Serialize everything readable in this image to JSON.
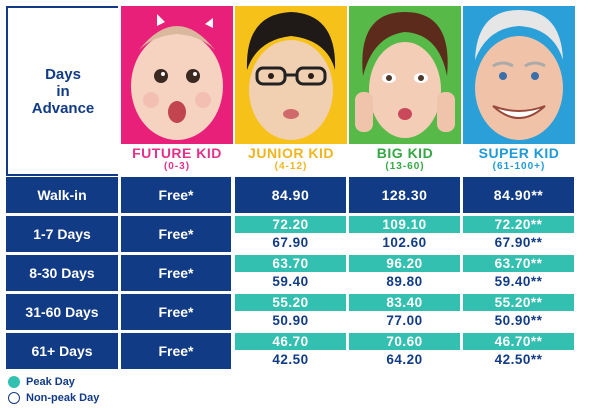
{
  "header": {
    "corner_line1": "Days",
    "corner_line2": "in",
    "corner_line3": "Advance"
  },
  "categories": [
    {
      "name": "FUTURE KID",
      "age": "(0-3)",
      "color": "#e6318a",
      "bg": "#e9207a"
    },
    {
      "name": "JUNIOR KID",
      "age": "(4-12)",
      "color": "#f0b51e",
      "bg": "#f6c21a"
    },
    {
      "name": "BIG KID",
      "age": "(13-60)",
      "color": "#36a843",
      "bg": "#56b948"
    },
    {
      "name": "SUPER KID",
      "age": "(61-100+)",
      "color": "#1e9bd7",
      "bg": "#2a9fd8"
    }
  ],
  "rows": [
    {
      "label": "Walk-in",
      "free": "Free*",
      "junior": "84.90",
      "big": "128.30",
      "super": "84.90**"
    },
    {
      "label": "1-7 Days",
      "free": "Free*",
      "junior_peak": "72.20",
      "junior_off": "67.90",
      "big_peak": "109.10",
      "big_off": "102.60",
      "super_peak": "72.20**",
      "super_off": "67.90**"
    },
    {
      "label": "8-30 Days",
      "free": "Free*",
      "junior_peak": "63.70",
      "junior_off": "59.40",
      "big_peak": "96.20",
      "big_off": "89.80",
      "super_peak": "63.70**",
      "super_off": "59.40**"
    },
    {
      "label": "31-60 Days",
      "free": "Free*",
      "junior_peak": "55.20",
      "junior_off": "50.90",
      "big_peak": "83.40",
      "big_off": "77.00",
      "super_peak": "55.20**",
      "super_off": "50.90**"
    },
    {
      "label": "61+ Days",
      "free": "Free*",
      "junior_peak": "46.70",
      "junior_off": "42.50",
      "big_peak": "70.60",
      "big_off": "64.20",
      "super_peak": "46.70**",
      "super_off": "42.50**"
    }
  ],
  "legend": {
    "peak": "Peak Day",
    "nonpeak": "Non-peak Day"
  },
  "colors": {
    "navy": "#123b85",
    "teal": "#34c0b0"
  }
}
